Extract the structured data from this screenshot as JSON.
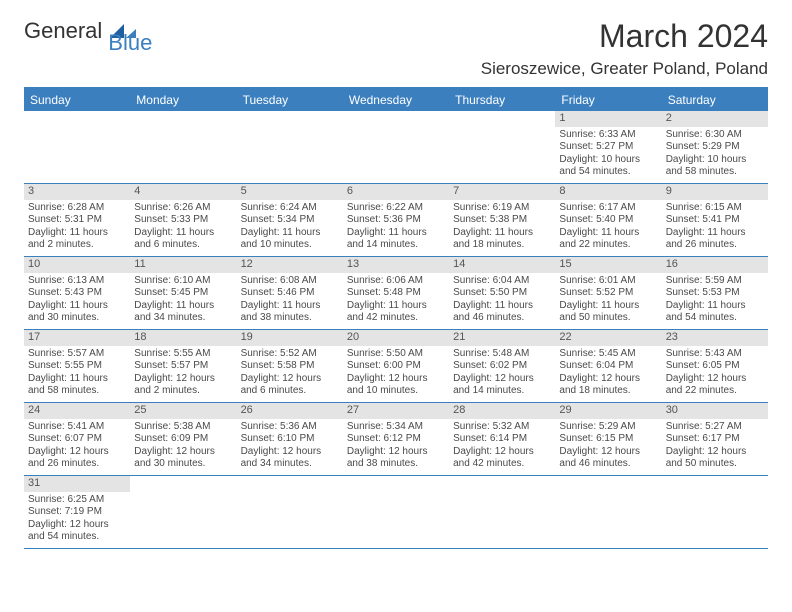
{
  "logo": {
    "general": "General",
    "blue": "Blue"
  },
  "title": "March 2024",
  "location": "Sieroszewice, Greater Poland, Poland",
  "day_headers": [
    "Sunday",
    "Monday",
    "Tuesday",
    "Wednesday",
    "Thursday",
    "Friday",
    "Saturday"
  ],
  "colors": {
    "accent": "#3b7fbf",
    "daynum_bg": "#e4e4e4",
    "text": "#333333",
    "cell_text": "#4a4a4a"
  },
  "weeks": [
    [
      null,
      null,
      null,
      null,
      null,
      {
        "n": "1",
        "sr": "Sunrise: 6:33 AM",
        "ss": "Sunset: 5:27 PM",
        "d1": "Daylight: 10 hours",
        "d2": "and 54 minutes."
      },
      {
        "n": "2",
        "sr": "Sunrise: 6:30 AM",
        "ss": "Sunset: 5:29 PM",
        "d1": "Daylight: 10 hours",
        "d2": "and 58 minutes."
      }
    ],
    [
      {
        "n": "3",
        "sr": "Sunrise: 6:28 AM",
        "ss": "Sunset: 5:31 PM",
        "d1": "Daylight: 11 hours",
        "d2": "and 2 minutes."
      },
      {
        "n": "4",
        "sr": "Sunrise: 6:26 AM",
        "ss": "Sunset: 5:33 PM",
        "d1": "Daylight: 11 hours",
        "d2": "and 6 minutes."
      },
      {
        "n": "5",
        "sr": "Sunrise: 6:24 AM",
        "ss": "Sunset: 5:34 PM",
        "d1": "Daylight: 11 hours",
        "d2": "and 10 minutes."
      },
      {
        "n": "6",
        "sr": "Sunrise: 6:22 AM",
        "ss": "Sunset: 5:36 PM",
        "d1": "Daylight: 11 hours",
        "d2": "and 14 minutes."
      },
      {
        "n": "7",
        "sr": "Sunrise: 6:19 AM",
        "ss": "Sunset: 5:38 PM",
        "d1": "Daylight: 11 hours",
        "d2": "and 18 minutes."
      },
      {
        "n": "8",
        "sr": "Sunrise: 6:17 AM",
        "ss": "Sunset: 5:40 PM",
        "d1": "Daylight: 11 hours",
        "d2": "and 22 minutes."
      },
      {
        "n": "9",
        "sr": "Sunrise: 6:15 AM",
        "ss": "Sunset: 5:41 PM",
        "d1": "Daylight: 11 hours",
        "d2": "and 26 minutes."
      }
    ],
    [
      {
        "n": "10",
        "sr": "Sunrise: 6:13 AM",
        "ss": "Sunset: 5:43 PM",
        "d1": "Daylight: 11 hours",
        "d2": "and 30 minutes."
      },
      {
        "n": "11",
        "sr": "Sunrise: 6:10 AM",
        "ss": "Sunset: 5:45 PM",
        "d1": "Daylight: 11 hours",
        "d2": "and 34 minutes."
      },
      {
        "n": "12",
        "sr": "Sunrise: 6:08 AM",
        "ss": "Sunset: 5:46 PM",
        "d1": "Daylight: 11 hours",
        "d2": "and 38 minutes."
      },
      {
        "n": "13",
        "sr": "Sunrise: 6:06 AM",
        "ss": "Sunset: 5:48 PM",
        "d1": "Daylight: 11 hours",
        "d2": "and 42 minutes."
      },
      {
        "n": "14",
        "sr": "Sunrise: 6:04 AM",
        "ss": "Sunset: 5:50 PM",
        "d1": "Daylight: 11 hours",
        "d2": "and 46 minutes."
      },
      {
        "n": "15",
        "sr": "Sunrise: 6:01 AM",
        "ss": "Sunset: 5:52 PM",
        "d1": "Daylight: 11 hours",
        "d2": "and 50 minutes."
      },
      {
        "n": "16",
        "sr": "Sunrise: 5:59 AM",
        "ss": "Sunset: 5:53 PM",
        "d1": "Daylight: 11 hours",
        "d2": "and 54 minutes."
      }
    ],
    [
      {
        "n": "17",
        "sr": "Sunrise: 5:57 AM",
        "ss": "Sunset: 5:55 PM",
        "d1": "Daylight: 11 hours",
        "d2": "and 58 minutes."
      },
      {
        "n": "18",
        "sr": "Sunrise: 5:55 AM",
        "ss": "Sunset: 5:57 PM",
        "d1": "Daylight: 12 hours",
        "d2": "and 2 minutes."
      },
      {
        "n": "19",
        "sr": "Sunrise: 5:52 AM",
        "ss": "Sunset: 5:58 PM",
        "d1": "Daylight: 12 hours",
        "d2": "and 6 minutes."
      },
      {
        "n": "20",
        "sr": "Sunrise: 5:50 AM",
        "ss": "Sunset: 6:00 PM",
        "d1": "Daylight: 12 hours",
        "d2": "and 10 minutes."
      },
      {
        "n": "21",
        "sr": "Sunrise: 5:48 AM",
        "ss": "Sunset: 6:02 PM",
        "d1": "Daylight: 12 hours",
        "d2": "and 14 minutes."
      },
      {
        "n": "22",
        "sr": "Sunrise: 5:45 AM",
        "ss": "Sunset: 6:04 PM",
        "d1": "Daylight: 12 hours",
        "d2": "and 18 minutes."
      },
      {
        "n": "23",
        "sr": "Sunrise: 5:43 AM",
        "ss": "Sunset: 6:05 PM",
        "d1": "Daylight: 12 hours",
        "d2": "and 22 minutes."
      }
    ],
    [
      {
        "n": "24",
        "sr": "Sunrise: 5:41 AM",
        "ss": "Sunset: 6:07 PM",
        "d1": "Daylight: 12 hours",
        "d2": "and 26 minutes."
      },
      {
        "n": "25",
        "sr": "Sunrise: 5:38 AM",
        "ss": "Sunset: 6:09 PM",
        "d1": "Daylight: 12 hours",
        "d2": "and 30 minutes."
      },
      {
        "n": "26",
        "sr": "Sunrise: 5:36 AM",
        "ss": "Sunset: 6:10 PM",
        "d1": "Daylight: 12 hours",
        "d2": "and 34 minutes."
      },
      {
        "n": "27",
        "sr": "Sunrise: 5:34 AM",
        "ss": "Sunset: 6:12 PM",
        "d1": "Daylight: 12 hours",
        "d2": "and 38 minutes."
      },
      {
        "n": "28",
        "sr": "Sunrise: 5:32 AM",
        "ss": "Sunset: 6:14 PM",
        "d1": "Daylight: 12 hours",
        "d2": "and 42 minutes."
      },
      {
        "n": "29",
        "sr": "Sunrise: 5:29 AM",
        "ss": "Sunset: 6:15 PM",
        "d1": "Daylight: 12 hours",
        "d2": "and 46 minutes."
      },
      {
        "n": "30",
        "sr": "Sunrise: 5:27 AM",
        "ss": "Sunset: 6:17 PM",
        "d1": "Daylight: 12 hours",
        "d2": "and 50 minutes."
      }
    ],
    [
      {
        "n": "31",
        "sr": "Sunrise: 6:25 AM",
        "ss": "Sunset: 7:19 PM",
        "d1": "Daylight: 12 hours",
        "d2": "and 54 minutes."
      },
      null,
      null,
      null,
      null,
      null,
      null
    ]
  ]
}
